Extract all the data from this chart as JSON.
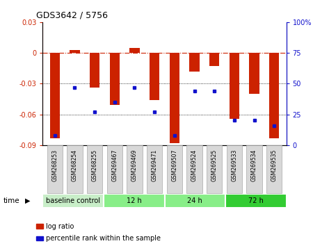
{
  "title": "GDS3642 / 5756",
  "samples": [
    "GSM268253",
    "GSM268254",
    "GSM268255",
    "GSM269467",
    "GSM269469",
    "GSM269471",
    "GSM269507",
    "GSM269524",
    "GSM269525",
    "GSM269533",
    "GSM269534",
    "GSM269535"
  ],
  "log_ratio": [
    -0.083,
    0.003,
    -0.034,
    -0.051,
    0.005,
    -0.046,
    -0.088,
    -0.018,
    -0.013,
    -0.064,
    -0.04,
    -0.083
  ],
  "percentile_rank": [
    8,
    47,
    27,
    35,
    47,
    27,
    8,
    44,
    44,
    20,
    20,
    16
  ],
  "ylim_left": [
    -0.09,
    0.03
  ],
  "ylim_right": [
    0,
    100
  ],
  "yticks_left": [
    0.03,
    0,
    -0.03,
    -0.06,
    -0.09
  ],
  "yticks_right": [
    100,
    75,
    50,
    25,
    0
  ],
  "bar_color": "#CC2200",
  "dot_color": "#1111CC",
  "groups": [
    {
      "label": "baseline control",
      "start": 0,
      "end": 3,
      "color": "#c8eec8"
    },
    {
      "label": "12 h",
      "start": 3,
      "end": 6,
      "color": "#88ee88"
    },
    {
      "label": "24 h",
      "start": 6,
      "end": 9,
      "color": "#88ee88"
    },
    {
      "label": "72 h",
      "start": 9,
      "end": 12,
      "color": "#33cc33"
    }
  ],
  "legend_bar_label": "log ratio",
  "legend_dot_label": "percentile rank within the sample",
  "time_label": "time"
}
